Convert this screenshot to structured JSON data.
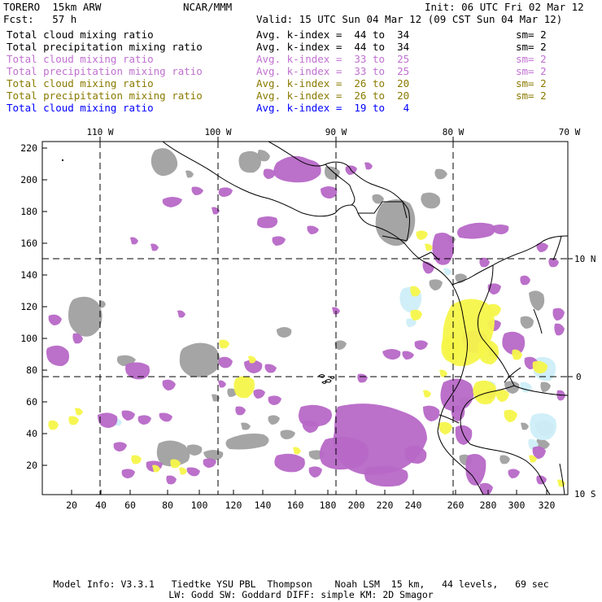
{
  "header": {
    "model": "TORERO  15km ARW",
    "org": "NCAR/MMM",
    "init": "Init: 06 UTC Fri 02 Mar 12",
    "fcst": "Fcst:   57 h",
    "valid": "Valid: 15 UTC Sun 04 Mar 12 (09 CST Sun 04 Mar 12)"
  },
  "legend": [
    {
      "label": "Total cloud mixing ratio",
      "kindex": "Avg. k-index =  44 to  34",
      "sm": "sm= 2",
      "color": "#000000"
    },
    {
      "label": "Total precipitation mixing ratio",
      "kindex": "Avg. k-index =  44 to  34",
      "sm": "sm= 2",
      "color": "#000000"
    },
    {
      "label": "Total cloud mixing ratio",
      "kindex": "Avg. k-index =  33 to  25",
      "sm": "sm= 2",
      "color": "#c070d0"
    },
    {
      "label": "Total precipitation mixing ratio",
      "kindex": "Avg. k-index =  33 to  25",
      "sm": "sm= 2",
      "color": "#c070d0"
    },
    {
      "label": "Total cloud mixing ratio",
      "kindex": "Avg. k-index =  26 to  20",
      "sm": "sm= 2",
      "color": "#8a7a00"
    },
    {
      "label": "Total precipitation mixing ratio",
      "kindex": "Avg. k-index =  26 to  20",
      "sm": "sm= 2",
      "color": "#8a7a00"
    },
    {
      "label": "Total cloud mixing ratio",
      "kindex": "Avg. k-index =  19 to   4",
      "sm": "",
      "color": "#0000ff"
    }
  ],
  "top_lon_labels": [
    "110 W",
    "100 W",
    "90 W",
    "80 W",
    "70 W"
  ],
  "right_lat_labels": [
    "10 N",
    "0",
    "10 S"
  ],
  "y_ticks": [
    "220",
    "200",
    "180",
    "160",
    "140",
    "120",
    "100",
    "80",
    "60",
    "40",
    "20"
  ],
  "x_ticks": [
    "20",
    "40",
    "60",
    "80",
    "100",
    "120",
    "140",
    "160",
    "180",
    "200",
    "220",
    "240",
    "260",
    "280",
    "300",
    "320"
  ],
  "colors": {
    "gray": "#a0a0a0",
    "purple": "#b768c7",
    "yellow": "#f5f54a",
    "lightblue": "#cdeef8",
    "coast": "#000000"
  },
  "footer": {
    "line1": "Model Info: V3.3.1   Tiedtke YSU PBL  Thompson    Noah LSM  15 km,   44 levels,   69 sec",
    "line2": "LW: Godd SW: Goddard DIFF: simple KM: 2D Smagor"
  }
}
